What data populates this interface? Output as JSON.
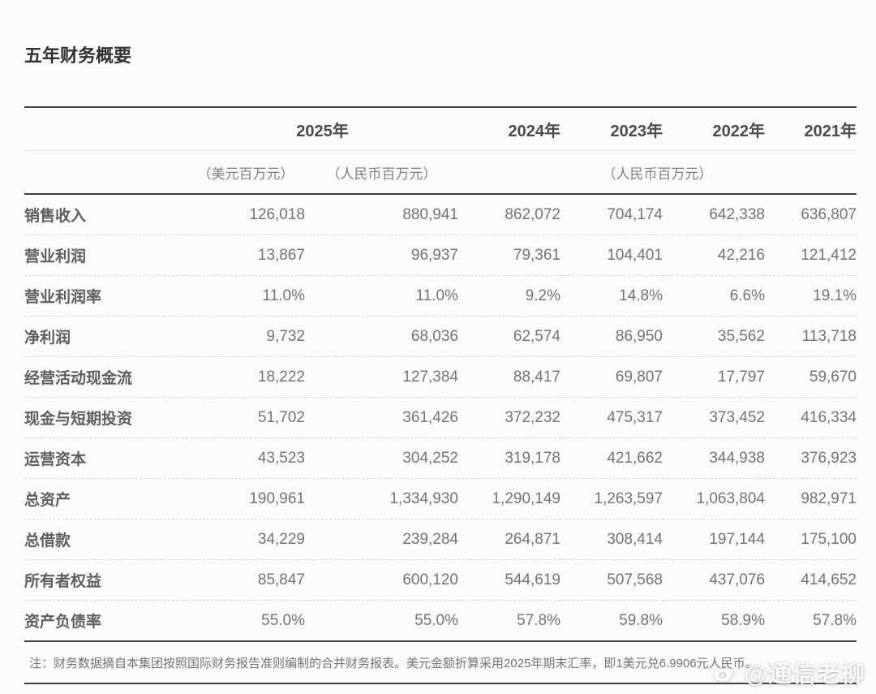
{
  "title": "五年财务概要",
  "header": {
    "years": [
      "2025年",
      "2024年",
      "2023年",
      "2022年",
      "2021年"
    ],
    "units": [
      "（美元百万元）",
      "（人民币百万元）",
      "（人民币百万元）"
    ]
  },
  "table": {
    "rows": [
      {
        "label": "销售收入",
        "values": [
          "126,018",
          "880,941",
          "862,072",
          "704,174",
          "642,338",
          "636,807"
        ]
      },
      {
        "label": "营业利润",
        "values": [
          "13,867",
          "96,937",
          "79,361",
          "104,401",
          "42,216",
          "121,412"
        ]
      },
      {
        "label": "营业利润率",
        "values": [
          "11.0%",
          "11.0%",
          "9.2%",
          "14.8%",
          "6.6%",
          "19.1%"
        ]
      },
      {
        "label": "净利润",
        "values": [
          "9,732",
          "68,036",
          "62,574",
          "86,950",
          "35,562",
          "113,718"
        ]
      },
      {
        "label": "经营活动现金流",
        "values": [
          "18,222",
          "127,384",
          "88,417",
          "69,807",
          "17,797",
          "59,670"
        ]
      },
      {
        "label": "现金与短期投资",
        "values": [
          "51,702",
          "361,426",
          "372,232",
          "475,317",
          "373,452",
          "416,334"
        ]
      },
      {
        "label": "运营资本",
        "values": [
          "43,523",
          "304,252",
          "319,178",
          "421,662",
          "344,938",
          "376,923"
        ]
      },
      {
        "label": "总资产",
        "values": [
          "190,961",
          "1,334,930",
          "1,290,149",
          "1,263,597",
          "1,063,804",
          "982,971"
        ]
      },
      {
        "label": "总借款",
        "values": [
          "34,229",
          "239,284",
          "264,871",
          "308,414",
          "197,144",
          "175,100"
        ]
      },
      {
        "label": "所有者权益",
        "values": [
          "85,847",
          "600,120",
          "544,619",
          "507,568",
          "437,076",
          "414,652"
        ]
      },
      {
        "label": "资产负债率",
        "values": [
          "55.0%",
          "55.0%",
          "57.8%",
          "59.8%",
          "58.9%",
          "57.8%"
        ]
      }
    ]
  },
  "note": "注：财务数据摘自本集团按照国际财务报告准则编制的合并财务报表。美元金额折算采用2025年期末汇率，即1美元兑6.9906元人民币。",
  "watermark": {
    "label": "@通信老柳",
    "icon": "weibo-icon"
  },
  "colors": {
    "background": "#fbfbfb",
    "rule_dark": "#3f3f3f",
    "rule_light": "#e3e3e3",
    "rule_dashed": "#d8d8d8",
    "text_title": "#323232",
    "text_header": "#4c4c4c",
    "text_unit": "#828282",
    "text_label": "#5f5f5f",
    "text_value": "#757575",
    "watermark": "#ffffff"
  }
}
